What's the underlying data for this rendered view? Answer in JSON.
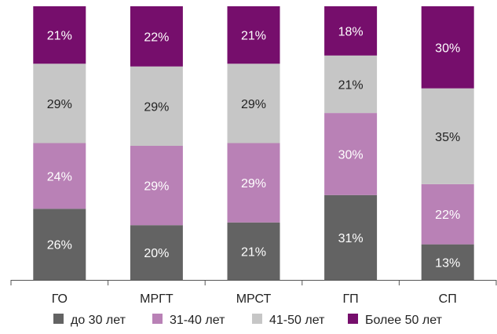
{
  "chart_data": {
    "type": "bar",
    "stacked": true,
    "percent": true,
    "categories": [
      "ГО",
      "МРГТ",
      "МРСТ",
      "ГП",
      "СП"
    ],
    "series": [
      {
        "name": "до 30 лет",
        "values": [
          26,
          20,
          21,
          31,
          13
        ],
        "color": "#636363"
      },
      {
        "name": "31-40 лет",
        "values": [
          24,
          29,
          29,
          30,
          22
        ],
        "color": "#b981b6"
      },
      {
        "name": "41-50 лет",
        "values": [
          29,
          29,
          29,
          21,
          35
        ],
        "color": "#c6c6c6"
      },
      {
        "name": "Более 50 лет",
        "values": [
          21,
          22,
          21,
          18,
          30
        ],
        "color": "#760e6c"
      }
    ],
    "data_label_format": "{v}%",
    "ylim": [
      0,
      100
    ],
    "grid": false,
    "legend_position": "bottom",
    "axis_color": "#555555",
    "label_color_dark": "#ffffff",
    "label_color_light": "#222222"
  }
}
